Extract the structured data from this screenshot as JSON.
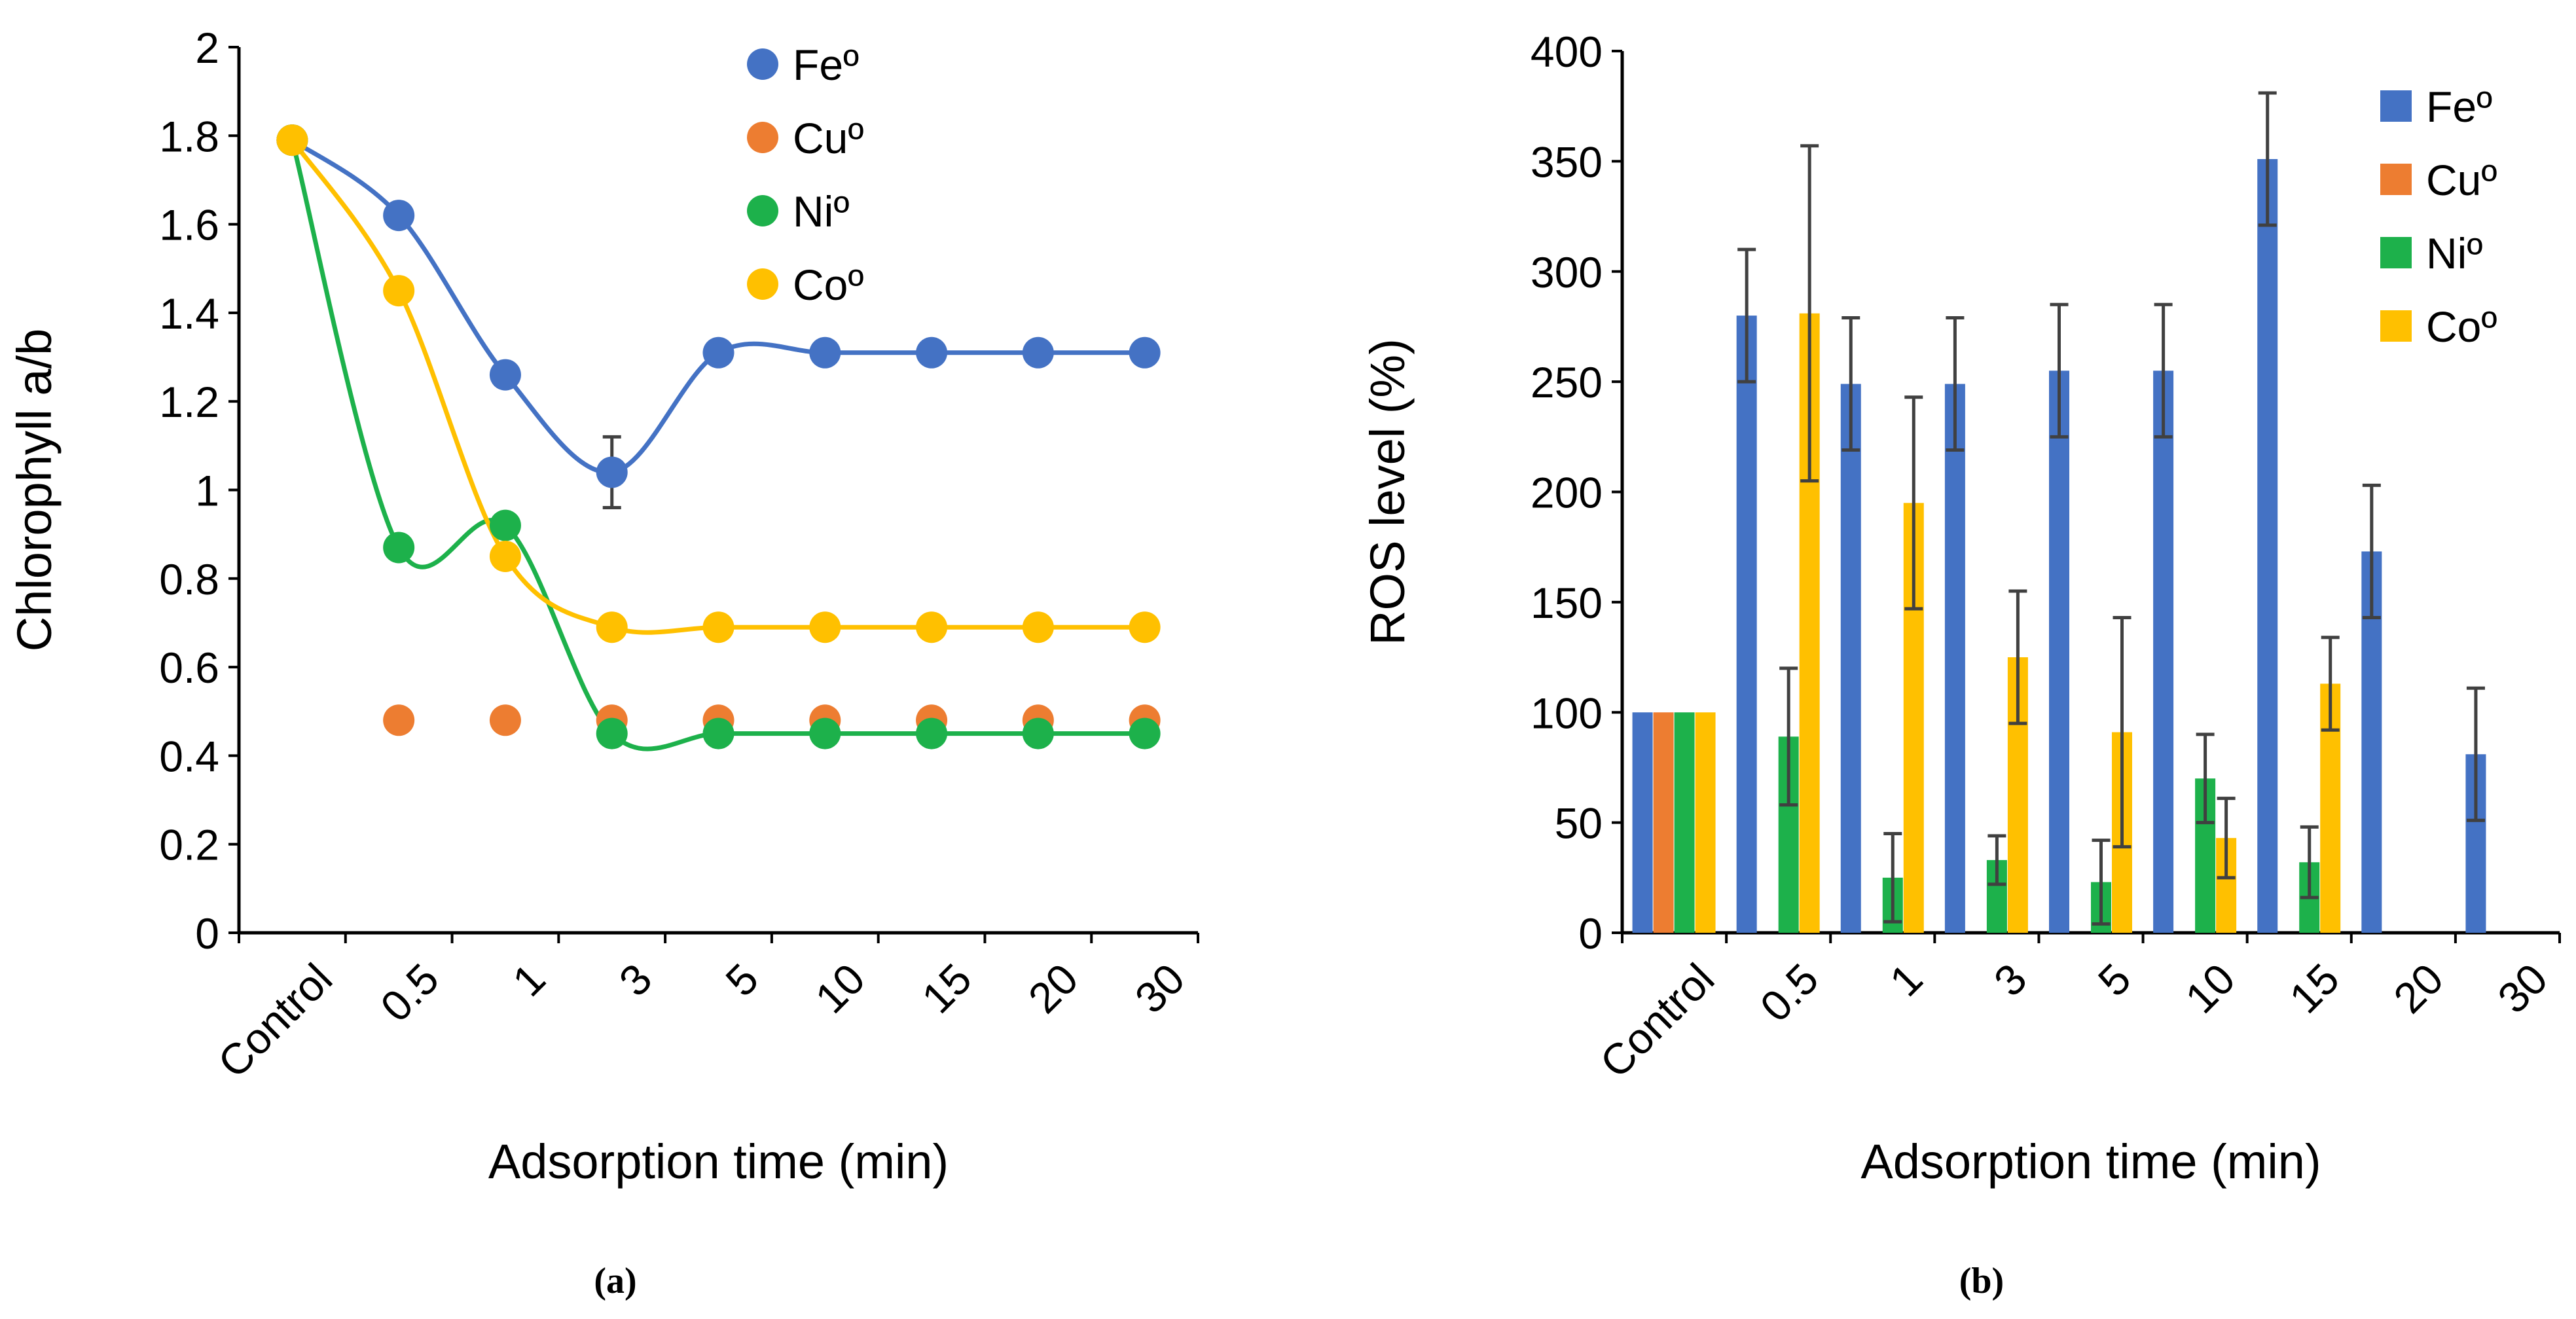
{
  "panel_labels": [
    "(a)",
    "(b)"
  ],
  "colors": {
    "Fe": "#4472C4",
    "Cu": "#ED7D31",
    "Ni": "#1DB14B",
    "Co": "#FFC000",
    "axis": "#000000",
    "error_bar": "#404040"
  },
  "chart_data": [
    {
      "type": "scatter",
      "smoothed_lines": true,
      "title": "",
      "xlabel": "Adsorption time (min)",
      "ylabel": "Chlorophyll a/b",
      "categories": [
        "Control",
        "0.5",
        "1",
        "3",
        "5",
        "10",
        "15",
        "20",
        "30"
      ],
      "ylim": [
        0,
        2
      ],
      "yticks": [
        "0",
        "0.2",
        "0.4",
        "0.6",
        "0.8",
        "1",
        "1.2",
        "1.4",
        "1.6",
        "1.8",
        "2"
      ],
      "legend_position": "top-right",
      "grid": false,
      "series": [
        {
          "name": "Feº",
          "key": "Fe",
          "values": [
            1.79,
            1.62,
            1.26,
            1.04,
            1.31,
            1.31,
            1.31,
            1.31,
            1.31
          ],
          "error": [
            null,
            null,
            null,
            0.08,
            null,
            null,
            null,
            null,
            null
          ],
          "line": true
        },
        {
          "name": "Cuº",
          "key": "Cu",
          "values": [
            1.79,
            0.48,
            0.48,
            0.48,
            0.48,
            0.48,
            0.48,
            0.48,
            0.48
          ],
          "error": [
            null,
            null,
            null,
            null,
            null,
            null,
            null,
            null,
            null
          ],
          "line": false
        },
        {
          "name": "Niº",
          "key": "Ni",
          "values": [
            1.79,
            0.87,
            0.92,
            0.45,
            0.45,
            0.45,
            0.45,
            0.45,
            0.45
          ],
          "error": [
            null,
            null,
            null,
            null,
            null,
            null,
            null,
            null,
            null
          ],
          "line": true
        },
        {
          "name": "Coº",
          "key": "Co",
          "values": [
            1.79,
            1.45,
            0.85,
            0.69,
            0.69,
            0.69,
            0.69,
            0.69,
            0.69
          ],
          "error": [
            null,
            null,
            null,
            null,
            null,
            null,
            null,
            null,
            null
          ],
          "line": true
        }
      ]
    },
    {
      "type": "bar",
      "title": "",
      "xlabel": "Adsorption time (min)",
      "ylabel": "ROS level (%)",
      "categories": [
        "Control",
        "0.5",
        "1",
        "3",
        "5",
        "10",
        "15",
        "20",
        "30"
      ],
      "ylim": [
        0,
        400
      ],
      "yticks": [
        "0",
        "50",
        "100",
        "150",
        "200",
        "250",
        "300",
        "350",
        "400"
      ],
      "legend_position": "top-right",
      "grid": false,
      "series": [
        {
          "name": "Feº",
          "key": "Fe",
          "values": [
            100,
            280,
            249,
            249,
            255,
            255,
            351,
            173,
            81
          ],
          "error": [
            null,
            30,
            30,
            30,
            30,
            30,
            30,
            30,
            30
          ]
        },
        {
          "name": "Cuº",
          "key": "Cu",
          "values": [
            100,
            null,
            null,
            null,
            null,
            null,
            null,
            null,
            null
          ],
          "error": [
            null,
            null,
            null,
            null,
            null,
            null,
            null,
            null,
            null
          ]
        },
        {
          "name": "Niº",
          "key": "Ni",
          "values": [
            100,
            89,
            25,
            33,
            23,
            70,
            32,
            null,
            null
          ],
          "error": [
            null,
            31,
            20,
            11,
            19,
            20,
            16,
            null,
            null
          ]
        },
        {
          "name": "Coº",
          "key": "Co",
          "values": [
            100,
            281,
            195,
            125,
            91,
            43,
            113,
            null,
            null
          ],
          "error": [
            null,
            76,
            48,
            30,
            52,
            18,
            21,
            null,
            null
          ]
        }
      ]
    }
  ]
}
